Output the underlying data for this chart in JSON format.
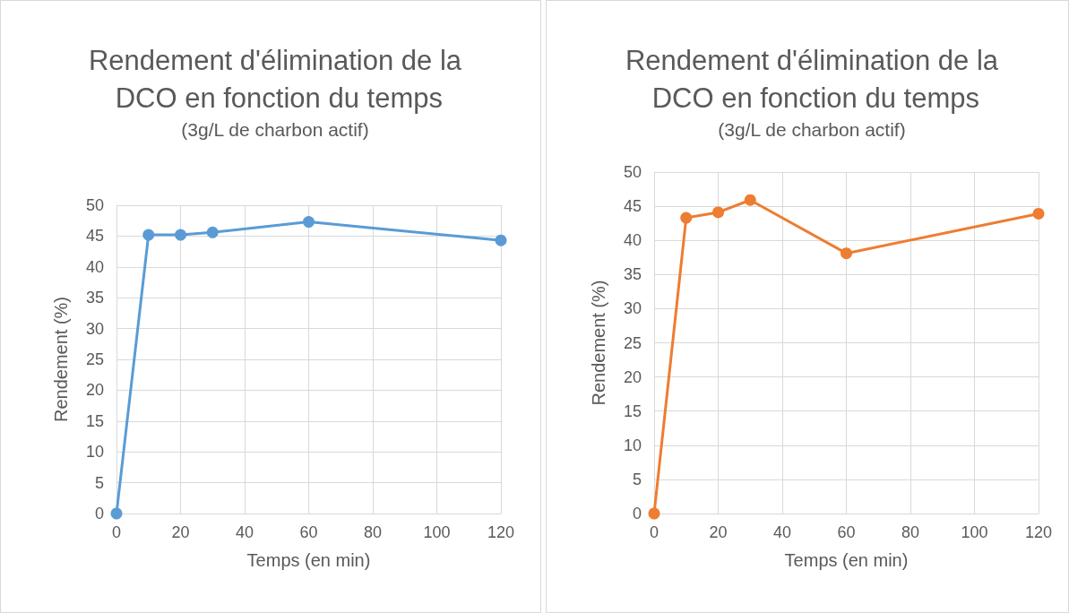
{
  "chart_data": [
    {
      "type": "line",
      "title": "Rendement d'élimination de la DCO en fonction du temps",
      "subtitle": "(3g/L de charbon actif)",
      "xlabel": "Temps (en min)",
      "ylabel": "Rendement (%)",
      "x": [
        0,
        10,
        20,
        30,
        60,
        120
      ],
      "series": [
        {
          "color": "#5b9bd5",
          "values": [
            0,
            45.2,
            45.2,
            45.6,
            47.3,
            44.3
          ]
        }
      ],
      "xlim": [
        0,
        120
      ],
      "xticks": [
        0,
        20,
        40,
        60,
        80,
        100,
        120
      ],
      "ylim": [
        0,
        50
      ],
      "yticks": [
        0,
        5,
        10,
        15,
        20,
        25,
        30,
        35,
        40,
        45,
        50
      ],
      "grid": true,
      "marker": "circle",
      "line_style": "solid"
    },
    {
      "type": "line",
      "title": "Rendement d'élimination de la DCO en fonction du temps",
      "subtitle": "(3g/L de charbon actif)",
      "xlabel": "Temps (en min)",
      "ylabel": "Rendement (%)",
      "x": [
        0,
        10,
        20,
        30,
        60,
        120
      ],
      "series": [
        {
          "color": "#ed7d31",
          "values": [
            0,
            43.3,
            44.1,
            45.9,
            38.1,
            43.9
          ]
        }
      ],
      "xlim": [
        0,
        120
      ],
      "xticks": [
        0,
        20,
        40,
        60,
        80,
        100,
        120
      ],
      "ylim": [
        0,
        50
      ],
      "yticks": [
        0,
        5,
        10,
        15,
        20,
        25,
        30,
        35,
        40,
        45,
        50
      ],
      "grid": true,
      "marker": "circle",
      "line_style": "solid"
    }
  ]
}
